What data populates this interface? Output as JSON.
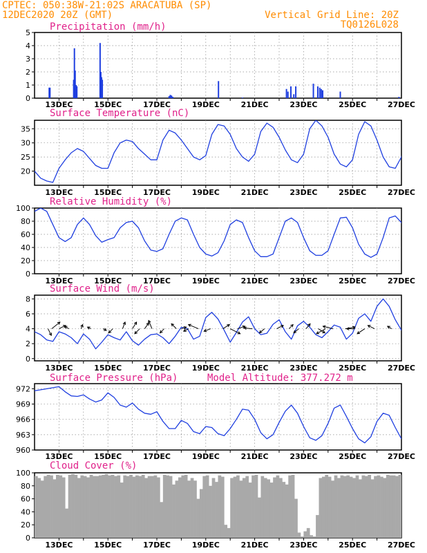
{
  "header": {
    "line1_left": "CPTEC:   050:38W-21:02S   ARACATUBA (SP)",
    "line2_left": "12DEC2020 20Z (GMT)",
    "line2_right": "Vertical Grid Line: 20Z",
    "line3_right": "TQ0126L028"
  },
  "colors": {
    "header": "#ff8c00",
    "title": "#e0218a",
    "series": "#1f3fe0",
    "cloud": "#a9a9a9",
    "grid": "#8c8c8c"
  },
  "x_axis": {
    "tick_labels": [
      "13DEC",
      "15DEC",
      "17DEC",
      "19DEC",
      "21DEC",
      "23DEC",
      "25DEC",
      "27DEC"
    ]
  },
  "chart_data": [
    {
      "id": "precipitation",
      "type": "bar",
      "title": "Precipitation (mm/h)",
      "ylim": [
        0,
        5
      ],
      "yticks": [
        0,
        1,
        2,
        3,
        4,
        5
      ],
      "grid": true,
      "bars_x_days": [
        12.6,
        12.63,
        13.6,
        13.63,
        13.66,
        13.7,
        13.73,
        14.68,
        14.71,
        14.74,
        14.77,
        17.5,
        17.55,
        17.6,
        17.65,
        19.52,
        20.5,
        22.3,
        22.36,
        22.48,
        22.6,
        22.68,
        23.4,
        23.58,
        23.66,
        23.72,
        23.78,
        24.5,
        26.9
      ],
      "bars_values": [
        0.8,
        0.8,
        1.4,
        3.8,
        2.1,
        1.0,
        0.9,
        4.2,
        2.0,
        1.6,
        1.4,
        0.15,
        0.25,
        0.2,
        0.1,
        1.3,
        0.05,
        0.7,
        0.5,
        0.9,
        0.3,
        0.9,
        1.1,
        0.9,
        0.8,
        0.7,
        0.6,
        0.5,
        0.1
      ]
    },
    {
      "id": "temperature",
      "type": "line",
      "title": "Surface Temperature (nC)",
      "ylim": [
        15,
        38
      ],
      "yticks": [
        20,
        25,
        30,
        35
      ],
      "grid": true,
      "x_start_day": 12.0,
      "x_step_days": 0.25,
      "values": [
        20,
        17.5,
        16.5,
        16,
        21,
        24,
        26.5,
        28,
        27,
        24.5,
        22,
        21,
        21,
        26.5,
        30,
        31,
        30.5,
        28,
        26,
        24,
        24,
        31,
        34.5,
        33.5,
        31,
        28,
        25,
        24,
        25.5,
        33,
        36.5,
        36,
        33,
        28,
        25,
        23.5,
        26,
        34,
        37,
        35.5,
        32,
        27.5,
        24,
        23,
        26,
        35,
        38,
        36,
        32,
        26,
        22.5,
        21.5,
        24,
        33,
        37.5,
        36,
        31,
        25,
        21.5,
        21,
        25,
        34,
        37.5,
        35,
        29,
        24,
        21,
        21,
        24,
        32,
        36,
        33,
        28,
        23.5,
        21,
        21.5,
        25,
        33,
        36,
        33.5,
        28,
        23.5,
        21,
        21.5,
        25,
        33.5,
        35,
        32.5,
        27.5,
        23,
        21.5,
        22.5,
        25,
        33,
        34.5,
        31.5,
        27,
        23,
        21.5,
        22,
        24.5,
        32,
        34.5,
        32,
        28,
        24,
        22,
        22,
        24,
        33,
        35.5,
        32,
        28,
        23.5,
        21,
        21.5,
        24,
        33,
        35.5,
        33,
        28,
        23.5,
        21.5,
        22,
        24,
        33,
        35.5,
        33,
        28,
        23,
        21,
        22,
        24,
        33,
        35.5,
        33,
        28.5,
        23.5,
        21.5,
        22,
        24.5,
        34,
        35.5,
        31
      ]
    },
    {
      "id": "humidity",
      "type": "line",
      "title": "Relative Humidity (%)",
      "ylim": [
        0,
        100
      ],
      "yticks": [
        0,
        20,
        40,
        60,
        80,
        100
      ],
      "grid": true,
      "x_start_day": 12.0,
      "x_step_days": 0.25,
      "values": [
        95,
        100,
        95,
        75,
        55,
        49,
        55,
        75,
        85,
        75,
        58,
        48,
        52,
        55,
        70,
        78,
        80,
        70,
        50,
        36,
        34,
        38,
        60,
        80,
        85,
        82,
        60,
        40,
        30,
        27,
        32,
        50,
        75,
        82,
        78,
        55,
        35,
        26,
        26,
        30,
        55,
        80,
        85,
        78,
        55,
        35,
        28,
        28,
        35,
        60,
        85,
        86,
        70,
        45,
        30,
        25,
        30,
        55,
        85,
        88,
        78,
        50,
        30,
        23,
        28,
        50,
        80,
        85,
        78,
        50,
        32,
        28,
        30,
        55,
        82,
        85,
        75,
        45,
        30,
        28,
        35,
        58,
        85,
        85,
        75,
        45,
        28,
        22,
        30,
        55,
        85,
        88,
        75,
        45,
        30,
        28,
        35,
        58,
        85,
        90,
        80,
        50,
        32,
        28,
        38,
        65,
        90,
        92,
        82,
        55,
        35,
        28,
        40,
        72,
        98,
        100,
        90,
        65,
        40,
        32,
        35,
        48,
        60,
        70,
        65,
        45,
        32,
        30,
        35,
        50,
        72,
        80,
        70,
        45,
        30,
        28,
        32,
        45,
        60,
        65,
        58,
        40,
        28,
        25,
        35
      ]
    },
    {
      "id": "wind",
      "type": "line",
      "title": "Surface Wind (m/s)",
      "ylim": [
        -0.3,
        8.5
      ],
      "yticks": [
        0,
        2,
        4,
        6,
        8
      ],
      "grid": true,
      "x_start_day": 12.0,
      "x_step_days": 0.25,
      "values": [
        3.6,
        3.2,
        2.5,
        2.3,
        3.6,
        3.3,
        2.8,
        2.0,
        3.3,
        2.6,
        1.3,
        2.2,
        3.2,
        2.8,
        2.5,
        3.6,
        2.4,
        1.8,
        2.6,
        3.2,
        3.3,
        2.8,
        2.0,
        3.0,
        4.2,
        4.0,
        2.6,
        3.0,
        5.5,
        6.2,
        5.3,
        3.8,
        2.2,
        3.5,
        4.9,
        5.6,
        4.0,
        3.2,
        3.4,
        4.6,
        5.2,
        3.6,
        2.6,
        4.4,
        5.0,
        4.2,
        3.2,
        2.8,
        3.6,
        4.5,
        4.2,
        2.6,
        3.4,
        5.4,
        6.0,
        5.0,
        7.0,
        8.0,
        7.0,
        5.2,
        3.8,
        3.2,
        3.6,
        5.0,
        4.1,
        2.9,
        3.8,
        5.2,
        4.5,
        3.5,
        3.8,
        4.2,
        3.6,
        3.8,
        4.1,
        3.7,
        3.2,
        3.8,
        4.9,
        3.5,
        2.2,
        3.4,
        4.5,
        3.6,
        2.7,
        3.8,
        5.1,
        4.0,
        3.0,
        3.9,
        3.1,
        1.8,
        3.7,
        4.2,
        3.2,
        2.7,
        3.8,
        4.6,
        3.9,
        3.0,
        3.6,
        4.7,
        5.2,
        4.1,
        3.4,
        4.4,
        5.0,
        4.2,
        3.3,
        4.0,
        5.0,
        4.6,
        3.6,
        3.8,
        5.5,
        4.2,
        3.4,
        4.4,
        5.1,
        4.8,
        3.7,
        4.6,
        5.4,
        5.2,
        4.0,
        5.3,
        6.2,
        5.6,
        4.6,
        4.8,
        5.2,
        5.6,
        4.4,
        3.8,
        4.6,
        5.2,
        4.6,
        3.6,
        2.6,
        2.2,
        3.6,
        4.8,
        4.0,
        2.8
      ],
      "vectors": [
        {
          "day": 12.55,
          "u": 0.4,
          "v": -0.8
        },
        {
          "day": 12.7,
          "u": 1.0,
          "v": 0.8
        },
        {
          "day": 13.0,
          "u": 0.8,
          "v": 0.4
        },
        {
          "day": 13.4,
          "u": -0.5,
          "v": 0.3
        },
        {
          "day": 13.9,
          "u": 0.2,
          "v": 0.5
        },
        {
          "day": 14.3,
          "u": -0.4,
          "v": 0.2
        },
        {
          "day": 14.8,
          "u": 0.4,
          "v": -0.2
        },
        {
          "day": 15.2,
          "u": -0.5,
          "v": -0.5
        },
        {
          "day": 15.6,
          "u": 0.3,
          "v": 0.8
        },
        {
          "day": 16.0,
          "u": 0.5,
          "v": 0.8
        },
        {
          "day": 16.3,
          "u": -0.6,
          "v": -0.6
        },
        {
          "day": 16.5,
          "u": 0.5,
          "v": 0.7
        },
        {
          "day": 16.8,
          "u": -0.4,
          "v": 1.0
        },
        {
          "day": 17.3,
          "u": -0.5,
          "v": -0.5
        },
        {
          "day": 17.8,
          "u": -0.6,
          "v": 0.6
        },
        {
          "day": 18.0,
          "u": 0.6,
          "v": 0.2
        },
        {
          "day": 18.3,
          "u": -0.6,
          "v": -0.3
        },
        {
          "day": 18.7,
          "u": -1.2,
          "v": 0.5
        },
        {
          "day": 19.2,
          "u": -0.8,
          "v": -0.3
        },
        {
          "day": 19.7,
          "u": 0.8,
          "v": 0.5
        },
        {
          "day": 20.0,
          "u": 1.2,
          "v": -0.6
        },
        {
          "day": 20.3,
          "u": 0.9,
          "v": 0.3
        },
        {
          "day": 20.9,
          "u": -1.0,
          "v": 0.1
        },
        {
          "day": 21.4,
          "u": -0.6,
          "v": -0.5
        },
        {
          "day": 21.9,
          "u": 0.8,
          "v": 0.4
        },
        {
          "day": 22.4,
          "u": 0.5,
          "v": 0.5
        },
        {
          "day": 22.8,
          "u": -0.6,
          "v": -0.5
        },
        {
          "day": 23.1,
          "u": 0.5,
          "v": 0.6
        },
        {
          "day": 23.6,
          "u": 0.8,
          "v": -0.5
        },
        {
          "day": 23.9,
          "u": -1.1,
          "v": -0.6
        },
        {
          "day": 24.2,
          "u": -1.2,
          "v": 0.3
        },
        {
          "day": 24.7,
          "u": 1.2,
          "v": 0.2
        },
        {
          "day": 25.1,
          "u": -1.0,
          "v": 0.0
        },
        {
          "day": 25.5,
          "u": -0.9,
          "v": -0.6
        },
        {
          "day": 25.9,
          "u": -0.8,
          "v": 0.4
        },
        {
          "day": 26.6,
          "u": -0.5,
          "v": 0.3
        }
      ]
    },
    {
      "id": "pressure",
      "type": "line",
      "title": "Surface Pressure (hPa)",
      "title_extra": "Model Altitude: 377.272 m",
      "ylim": [
        960,
        973
      ],
      "yticks": [
        960,
        963,
        966,
        969,
        972
      ],
      "grid": true,
      "x_start_day": 12.0,
      "x_step_days": 0.25,
      "values": [
        971.6,
        971.8,
        972,
        972.2,
        972.4,
        971.4,
        970.6,
        970.5,
        970.8,
        970,
        969.4,
        969.8,
        971.2,
        970.3,
        968.8,
        968.4,
        969.2,
        968,
        967.2,
        967,
        967.5,
        965.6,
        964.2,
        964.2,
        965.8,
        965.2,
        963.6,
        963.2,
        964.6,
        964.4,
        963.2,
        962.8,
        964.2,
        966,
        968,
        967.8,
        966,
        963.4,
        962.2,
        963,
        965.4,
        967.6,
        968.8,
        967.2,
        964.6,
        962.4,
        961.9,
        962.8,
        965.2,
        968.2,
        968.8,
        966.6,
        964.2,
        962.2,
        961.4,
        962.6,
        965.6,
        967.2,
        966.8,
        964.4,
        962.2,
        961.2,
        962,
        964.4,
        966.6,
        966.2,
        963.4,
        961,
        960.2,
        961,
        963.6,
        965.6,
        965,
        962.6,
        960.6,
        960,
        961,
        963.6,
        965.6,
        964.8,
        962.4,
        960.6,
        960.2,
        961.4,
        964,
        965.2,
        964.2,
        962,
        960.4,
        960.2,
        961,
        963.4,
        965.2,
        964.6,
        962.6,
        961,
        961,
        962.4,
        965.2,
        966,
        964.4,
        962.2,
        960.6,
        960.6,
        962,
        964.8,
        965.8,
        964.4,
        962,
        960.2,
        960.2,
        962,
        964.8,
        966,
        964.6,
        962.4,
        960.6,
        960.6,
        962,
        965,
        966.4,
        964.8,
        962.2,
        960.4,
        960.6,
        962.4,
        965.4,
        966.8,
        965.4,
        962.8,
        960.8,
        960.8,
        962.6,
        965.8,
        966.4,
        964.6,
        962,
        960.2,
        960,
        961.4,
        963.8,
        964.4
      ]
    },
    {
      "id": "cloud",
      "type": "area",
      "title": "Cloud Cover (%)",
      "ylim": [
        0,
        100
      ],
      "yticks": [
        0,
        20,
        40,
        60,
        80,
        100
      ],
      "grid": false,
      "x_start_day": 12.0,
      "x_step_days": 0.125,
      "values": [
        95,
        92,
        88,
        95,
        97,
        96,
        90,
        97,
        96,
        93,
        45,
        97,
        98,
        97,
        92,
        96,
        95,
        93,
        97,
        95,
        95,
        96,
        97,
        98,
        96,
        97,
        95,
        96,
        85,
        96,
        95,
        97,
        94,
        96,
        95,
        97,
        92,
        95,
        95,
        96,
        93,
        55,
        97,
        96,
        95,
        82,
        88,
        93,
        96,
        97,
        88,
        92,
        88,
        60,
        75,
        95,
        96,
        80,
        92,
        86,
        96,
        94,
        20,
        15,
        92,
        94,
        96,
        88,
        92,
        95,
        85,
        96,
        97,
        62,
        95,
        92,
        90,
        85,
        93,
        96,
        92,
        86,
        82,
        96,
        97,
        60,
        8,
        2,
        10,
        15,
        4,
        2,
        35,
        92,
        94,
        97,
        94,
        88,
        96,
        92,
        96,
        95,
        96,
        94,
        92,
        96,
        90,
        96,
        95,
        97,
        90,
        95,
        96,
        94,
        92,
        97,
        96,
        96,
        95,
        97,
        96,
        94,
        97,
        96,
        95,
        96,
        97,
        92,
        94,
        96,
        97,
        96,
        98,
        96,
        97,
        95,
        96,
        92,
        95,
        97,
        96,
        96,
        95,
        94,
        97,
        96,
        93,
        96,
        95,
        98,
        96,
        94,
        97,
        95,
        96,
        92,
        95,
        96,
        97,
        98
      ]
    }
  ]
}
